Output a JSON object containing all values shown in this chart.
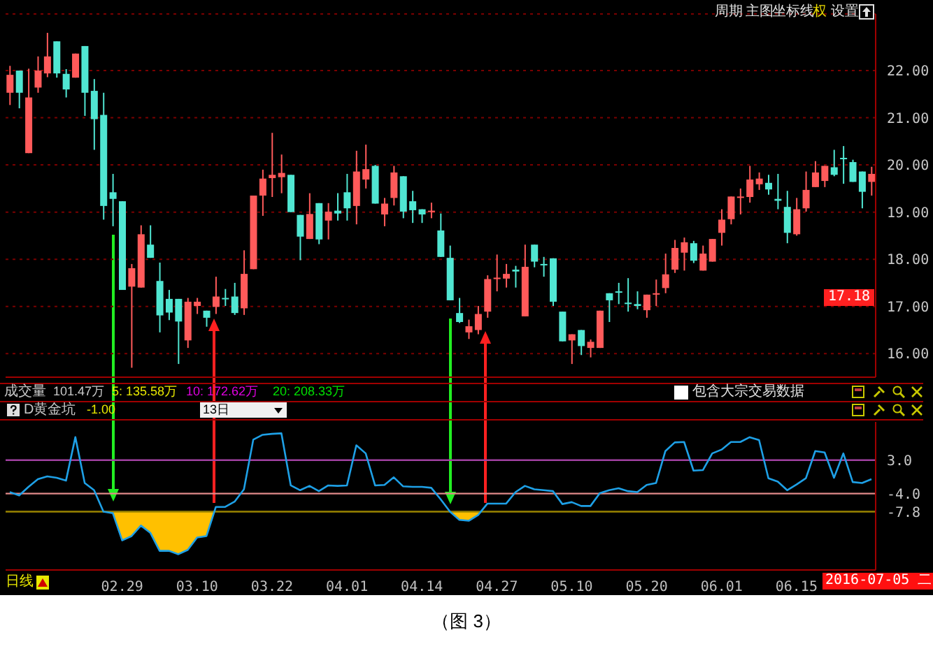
{
  "chart_data": [
    {
      "type": "candlestick",
      "categories": [
        null,
        null,
        null,
        null,
        null,
        null,
        null,
        null,
        null,
        null,
        null,
        null,
        "02.29",
        null,
        null,
        null,
        null,
        null,
        null,
        null,
        "03.10",
        null,
        null,
        null,
        null,
        null,
        null,
        null,
        "03.22",
        null,
        null,
        null,
        null,
        null,
        null,
        null,
        "04.01",
        null,
        null,
        null,
        null,
        null,
        null,
        null,
        "04.14",
        null,
        null,
        null,
        null,
        null,
        null,
        null,
        "04.27",
        null,
        null,
        null,
        null,
        null,
        null,
        null,
        "05.10",
        null,
        null,
        null,
        null,
        null,
        null,
        null,
        "05.20",
        null,
        null,
        null,
        null,
        null,
        null,
        null,
        "06.01",
        null,
        null,
        null,
        null,
        null,
        null,
        null,
        "06.15",
        null,
        null,
        null,
        null,
        null,
        null,
        null,
        null
      ],
      "ohlc": [
        [
          21.53,
          22.1,
          21.27,
          21.91
        ],
        [
          22.0,
          22.0,
          21.2,
          21.53
        ],
        [
          20.25,
          22.04,
          20.25,
          21.43
        ],
        [
          21.64,
          22.3,
          21.53,
          22.0
        ],
        [
          21.94,
          22.8,
          21.86,
          22.3
        ],
        [
          22.62,
          22.62,
          21.85,
          21.94
        ],
        [
          21.93,
          22.03,
          21.43,
          21.6
        ],
        [
          21.85,
          22.36,
          21.85,
          22.36
        ],
        [
          22.52,
          22.52,
          21.04,
          21.53
        ],
        [
          21.57,
          21.82,
          20.32,
          20.97
        ],
        [
          21.06,
          21.53,
          18.84,
          19.13
        ],
        [
          19.42,
          19.81,
          18.7,
          19.28
        ],
        [
          19.23,
          19.23,
          17.35,
          17.35
        ],
        [
          17.42,
          17.9,
          15.7,
          17.81
        ],
        [
          17.4,
          18.72,
          17.4,
          18.53
        ],
        [
          18.31,
          18.72,
          18.03,
          18.03
        ],
        [
          17.54,
          17.93,
          16.45,
          16.81
        ],
        [
          17.16,
          17.35,
          16.71,
          16.87
        ],
        [
          17.16,
          17.16,
          15.78,
          16.68
        ],
        [
          16.28,
          17.18,
          16.12,
          17.1
        ],
        [
          17.01,
          17.18,
          16.84,
          17.1
        ],
        [
          16.91,
          16.91,
          16.57,
          16.76
        ],
        [
          16.99,
          17.63,
          16.84,
          17.21
        ],
        [
          17.18,
          17.37,
          17.01,
          17.15
        ],
        [
          17.21,
          17.5,
          16.82,
          16.86
        ],
        [
          16.96,
          18.19,
          16.82,
          17.69
        ],
        [
          17.79,
          19.35,
          17.79,
          19.35
        ],
        [
          19.35,
          19.9,
          18.92,
          19.71
        ],
        [
          19.72,
          20.68,
          19.32,
          19.79
        ],
        [
          19.74,
          20.22,
          19.4,
          19.83
        ],
        [
          19.79,
          19.79,
          19.0,
          19.0
        ],
        [
          18.94,
          18.94,
          17.98,
          18.48
        ],
        [
          18.43,
          19.4,
          18.43,
          18.96
        ],
        [
          19.19,
          19.19,
          18.32,
          18.42
        ],
        [
          18.82,
          19.19,
          18.42,
          19.01
        ],
        [
          19.03,
          19.4,
          18.82,
          18.97
        ],
        [
          19.42,
          19.81,
          18.82,
          19.08
        ],
        [
          19.13,
          20.3,
          18.74,
          19.86
        ],
        [
          19.69,
          20.43,
          19.5,
          19.91
        ],
        [
          19.98,
          20.0,
          19.18,
          19.18
        ],
        [
          18.95,
          19.3,
          18.7,
          19.18
        ],
        [
          19.3,
          19.98,
          19.14,
          19.84
        ],
        [
          19.76,
          19.76,
          18.87,
          19.01
        ],
        [
          19.23,
          19.45,
          18.77,
          19.04
        ],
        [
          19.06,
          19.06,
          18.77,
          18.95
        ],
        [
          19.0,
          19.2,
          18.87,
          19.03
        ],
        [
          18.61,
          18.97,
          18.05,
          18.05
        ],
        [
          18.03,
          18.29,
          17.13,
          17.13
        ],
        [
          16.86,
          17.18,
          16.65,
          16.67
        ],
        [
          16.45,
          16.72,
          16.31,
          16.58
        ],
        [
          16.5,
          17.01,
          16.41,
          16.84
        ],
        [
          16.89,
          17.66,
          16.76,
          17.58
        ],
        [
          17.58,
          18.1,
          17.32,
          17.61
        ],
        [
          17.59,
          17.9,
          17.4,
          17.69
        ],
        [
          17.78,
          17.86,
          17.4,
          17.74
        ],
        [
          16.79,
          18.31,
          16.79,
          17.84
        ],
        [
          18.31,
          18.31,
          17.83,
          17.95
        ],
        [
          17.9,
          18.05,
          17.63,
          17.88
        ],
        [
          18.02,
          18.02,
          17.01,
          17.1
        ],
        [
          16.89,
          16.89,
          16.26,
          16.26
        ],
        [
          16.28,
          16.41,
          15.78,
          16.41
        ],
        [
          16.5,
          16.5,
          15.97,
          16.16
        ],
        [
          16.12,
          16.3,
          15.92,
          16.25
        ],
        [
          16.12,
          16.91,
          16.12,
          16.91
        ],
        [
          17.28,
          17.28,
          16.67,
          17.13
        ],
        [
          17.32,
          17.5,
          17.05,
          17.29
        ],
        [
          17.08,
          17.6,
          16.89,
          17.05
        ],
        [
          17.05,
          17.32,
          16.94,
          17.01
        ],
        [
          16.92,
          17.25,
          16.76,
          17.25
        ],
        [
          17.25,
          17.57,
          17.01,
          17.28
        ],
        [
          17.39,
          18.12,
          17.28,
          17.68
        ],
        [
          17.78,
          18.41,
          17.71,
          18.24
        ],
        [
          18.14,
          18.46,
          17.76,
          18.36
        ],
        [
          18.34,
          18.39,
          17.92,
          17.97
        ],
        [
          17.76,
          18.29,
          17.76,
          18.12
        ],
        [
          17.95,
          18.43,
          17.95,
          18.43
        ],
        [
          18.56,
          19.06,
          18.29,
          18.84
        ],
        [
          18.85,
          19.33,
          18.74,
          19.33
        ],
        [
          19.3,
          19.5,
          18.95,
          19.33
        ],
        [
          19.32,
          19.98,
          19.2,
          19.69
        ],
        [
          19.59,
          19.84,
          19.47,
          19.71
        ],
        [
          19.62,
          19.79,
          19.37,
          19.48
        ],
        [
          19.28,
          19.81,
          19.06,
          19.24
        ],
        [
          19.11,
          19.45,
          18.34,
          18.56
        ],
        [
          18.53,
          19.3,
          18.5,
          19.06
        ],
        [
          19.08,
          19.86,
          19.01,
          19.47
        ],
        [
          19.53,
          20.08,
          19.53,
          19.84
        ],
        [
          19.66,
          19.98,
          19.53,
          19.98
        ],
        [
          19.95,
          20.32,
          19.76,
          19.79
        ],
        [
          20.15,
          20.4,
          19.6,
          20.13
        ],
        [
          20.06,
          20.11,
          19.64,
          19.64
        ],
        [
          19.86,
          19.86,
          19.08,
          19.43
        ],
        [
          19.64,
          19.96,
          19.35,
          19.81
        ]
      ],
      "colors": [
        "#ff5a5a",
        "#50e6d2",
        "#ff5a5a",
        "#ff5a5a",
        "#ff5a5a",
        "#50e6d2",
        "#50e6d2",
        "#ff5a5a",
        "#50e6d2",
        "#50e6d2",
        "#50e6d2",
        "#50e6d2",
        "#50e6d2",
        "#ff5a5a",
        "#ff5a5a",
        "#50e6d2",
        "#50e6d2",
        "#50e6d2",
        "#50e6d2",
        "#ff5a5a",
        "#ff5a5a",
        "#50e6d2",
        "#ff5a5a",
        "#50e6d2",
        "#50e6d2",
        "#ff5a5a",
        "#ff5a5a",
        "#ff5a5a",
        "#ff5a5a",
        "#ff5a5a",
        "#50e6d2",
        "#50e6d2",
        "#ff5a5a",
        "#50e6d2",
        "#ff5a5a",
        "#50e6d2",
        "#50e6d2",
        "#ff5a5a",
        "#ff5a5a",
        "#50e6d2",
        "#ff5a5a",
        "#ff5a5a",
        "#50e6d2",
        "#50e6d2",
        "#50e6d2",
        "#ff5a5a",
        "#50e6d2",
        "#50e6d2",
        "#50e6d2",
        "#ff5a5a",
        "#ff5a5a",
        "#ff5a5a",
        "#ff5a5a",
        "#ff5a5a",
        "#50e6d2",
        "#ff5a5a",
        "#50e6d2",
        "#50e6d2",
        "#50e6d2",
        "#50e6d2",
        "#ff5a5a",
        "#50e6d2",
        "#ff5a5a",
        "#ff5a5a",
        "#50e6d2",
        "#50e6d2",
        "#50e6d2",
        "#50e6d2",
        "#ff5a5a",
        "#ff5a5a",
        "#ff5a5a",
        "#ff5a5a",
        "#ff5a5a",
        "#50e6d2",
        "#ff5a5a",
        "#ff5a5a",
        "#ff5a5a",
        "#ff5a5a",
        "#ff5a5a",
        "#ff5a5a",
        "#ff5a5a",
        "#50e6d2",
        "#50e6d2",
        "#50e6d2",
        "#ff5a5a",
        "#ff5a5a",
        "#ff5a5a",
        "#ff5a5a",
        "#50e6d2",
        "#50e6d2",
        "#50e6d2",
        "#50e6d2",
        "#ff5a5a"
      ],
      "ylim": [
        15.5,
        23.2
      ],
      "yticks": [
        {
          "value": 16,
          "label": "16.00"
        },
        {
          "value": 17,
          "label": "17.00"
        },
        {
          "value": 18,
          "label": "18.00"
        },
        {
          "value": 19,
          "label": "19.00"
        },
        {
          "value": 20,
          "label": "20.00"
        },
        {
          "value": 21,
          "label": "21.00"
        },
        {
          "value": 22,
          "label": "22.00"
        }
      ],
      "grid": "y",
      "tick_labels": "y",
      "annotations": [
        "周期",
        "主图",
        "坐标线",
        "权",
        "设置",
        {
          "text": "17.18",
          "y": 17.18
        }
      ]
    },
    {
      "type": "line",
      "title": "D黄金坑",
      "categories": [
        null,
        null,
        null,
        null,
        null,
        null,
        null,
        null,
        null,
        null,
        null,
        null,
        "02.29",
        null,
        null,
        null,
        null,
        null,
        null,
        null,
        "03.10",
        null,
        null,
        null,
        null,
        null,
        null,
        null,
        "03.22",
        null,
        null,
        null,
        null,
        null,
        null,
        null,
        "04.01",
        null,
        null,
        null,
        null,
        null,
        null,
        null,
        "04.14",
        null,
        null,
        null,
        null,
        null,
        null,
        null,
        "04.27",
        null,
        null,
        null,
        null,
        null,
        null,
        null,
        "05.10",
        null,
        null,
        null,
        null,
        null,
        null,
        null,
        "05.20",
        null,
        null,
        null,
        null,
        null,
        null,
        null,
        "06.01",
        null,
        null,
        null,
        null,
        null,
        null,
        null,
        "06.15",
        null,
        null,
        null,
        null,
        null,
        null,
        null,
        null
      ],
      "series": [
        {
          "color": "#1ea0e6",
          "values": [
            -3.7,
            -4.4,
            -2.6,
            -1.0,
            -0.4,
            -0.7,
            -1.3,
            7.8,
            -1.8,
            -3.3,
            -7.8,
            -8.1,
            -13.8,
            -12.9,
            -10.7,
            -12.2,
            -16.0,
            -16.0,
            -16.7,
            -15.8,
            -13.2,
            -12.9,
            -6.8,
            -6.8,
            -5.7,
            -3.1,
            7.3,
            8.3,
            8.5,
            8.6,
            -2.3,
            -3.3,
            -2.4,
            -3.5,
            -2.3,
            -2.4,
            -2.3,
            6.1,
            4.4,
            -2.3,
            -2.2,
            -0.6,
            -2.5,
            -2.6,
            -2.6,
            -2.8,
            -5.2,
            -7.8,
            -9.5,
            -9.7,
            -8.5,
            -6.1,
            -6.1,
            -6.1,
            -3.7,
            -2.4,
            -3.1,
            -3.3,
            -3.5,
            -6.2,
            -5.8,
            -6.6,
            -6.6,
            -3.9,
            -3.3,
            -2.9,
            -3.5,
            -3.7,
            -2.2,
            -1.8,
            4.9,
            6.7,
            6.8,
            0.8,
            0.9,
            4.4,
            5.2,
            6.8,
            6.8,
            7.8,
            7.2,
            -0.8,
            -1.5,
            -3.3,
            -2.1,
            -0.8,
            4.9,
            4.6,
            -0.7,
            4.4,
            -1.6,
            -1.8,
            -1.0
          ]
        }
      ],
      "ylim": [
        -20,
        11
      ],
      "yticks": [
        {
          "value": -7.8,
          "label": "-7.8"
        },
        {
          "value": -4,
          "label": "-4.0"
        },
        {
          "value": 3,
          "label": "3.0"
        }
      ],
      "ref_lines": [
        {
          "axis": "y",
          "value": 3,
          "color": "#a040a0"
        },
        {
          "axis": "y",
          "value": -4,
          "color": "#e08a8a"
        },
        {
          "axis": "y",
          "value": -7.8,
          "color": "#9a8400"
        }
      ],
      "annotations": [
        "成交量",
        "101.47万",
        "5: 135.58万",
        "10: 172.62万",
        "20: 208.33万",
        "包含大宗交易数据",
        "-1.00",
        "13日",
        "日线",
        "2016-07-05 二",
        "（图 3）"
      ]
    }
  ]
}
